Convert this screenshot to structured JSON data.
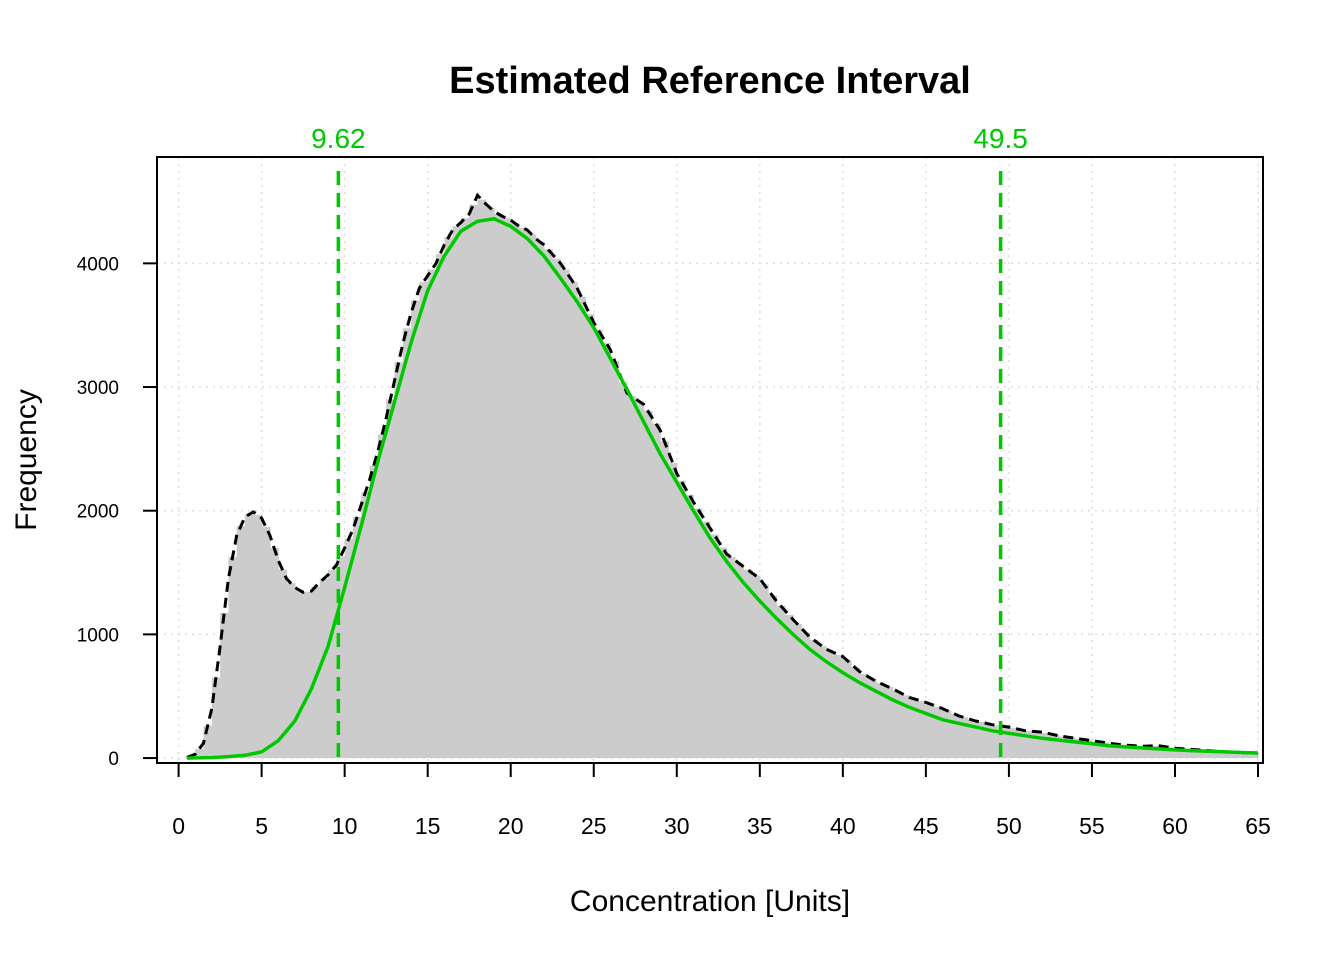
{
  "chart_data": {
    "type": "histogram",
    "title": "Estimated Reference Interval",
    "xlabel": "Concentration [Units]",
    "ylabel": "Frequency",
    "xlim": [
      -1.3,
      65.3
    ],
    "ylim": [
      -40,
      4860
    ],
    "xticks": [
      0,
      5,
      10,
      15,
      20,
      25,
      30,
      35,
      40,
      45,
      50,
      55,
      60,
      65
    ],
    "yticks": [
      0,
      1000,
      2000,
      3000,
      4000
    ],
    "grid": true,
    "bin_width": 0.5,
    "density_profile": {
      "x": [
        0.5,
        1.0,
        1.5,
        2.0,
        2.5,
        3.0,
        3.5,
        4.0,
        4.5,
        5.0,
        5.5,
        6.0,
        6.5,
        7.0,
        7.5,
        8.0,
        8.5,
        9.0,
        9.5,
        10.0,
        10.5,
        11.0,
        11.5,
        12.0,
        12.5,
        13.0,
        13.5,
        14.0,
        14.5,
        15.0,
        15.5,
        16.0,
        16.5,
        17.0,
        17.5,
        18.0,
        18.5,
        19.0,
        19.5,
        20.0,
        20.5,
        21.0,
        21.5,
        22.0,
        23.0,
        24.0,
        25.0,
        26.0,
        27.0,
        28.0,
        29.0,
        30.0,
        31.0,
        32.0,
        33.0,
        34.0,
        35.0,
        36.0,
        37.0,
        38.0,
        39.0,
        40.0,
        41.0,
        42.0,
        43.0,
        44.0,
        45.0,
        46.0,
        47.0,
        48.0,
        49.0,
        50.0,
        51.0,
        52.0,
        53.0,
        54.0,
        55.0,
        56.0,
        57.0,
        58.0,
        59.0,
        60.0,
        61.0,
        62.0,
        63.0,
        64.0,
        65.0
      ],
      "y": [
        5,
        30,
        120,
        400,
        900,
        1450,
        1800,
        1950,
        1990,
        1940,
        1800,
        1600,
        1450,
        1380,
        1340,
        1350,
        1420,
        1480,
        1560,
        1700,
        1850,
        2050,
        2250,
        2480,
        2750,
        3050,
        3350,
        3600,
        3800,
        3900,
        4000,
        4150,
        4270,
        4330,
        4400,
        4550,
        4480,
        4420,
        4380,
        4350,
        4300,
        4270,
        4200,
        4150,
        4000,
        3800,
        3520,
        3300,
        2950,
        2860,
        2650,
        2300,
        2070,
        1860,
        1650,
        1550,
        1450,
        1270,
        1120,
        980,
        880,
        820,
        700,
        620,
        560,
        490,
        450,
        400,
        340,
        300,
        270,
        250,
        220,
        210,
        180,
        160,
        140,
        120,
        105,
        95,
        100,
        80,
        70,
        60,
        50,
        45,
        40
      ]
    },
    "fitted_curve": {
      "x": [
        0.5,
        1.0,
        2.0,
        3.0,
        4.0,
        5.0,
        6.0,
        7.0,
        8.0,
        9.0,
        10.0,
        11.0,
        12.0,
        13.0,
        14.0,
        15.0,
        16.0,
        17.0,
        18.0,
        19.0,
        20.0,
        21.0,
        22.0,
        23.0,
        24.0,
        25.0,
        26.0,
        27.0,
        28.0,
        29.0,
        30.0,
        31.0,
        32.0,
        33.0,
        34.0,
        35.0,
        36.0,
        37.0,
        38.0,
        39.0,
        40.0,
        41.0,
        42.0,
        43.0,
        44.0,
        45.0,
        46.0,
        47.0,
        48.0,
        49.0,
        50.0,
        51.0,
        52.0,
        53.0,
        54.0,
        55.0,
        56.0,
        57.0,
        58.0,
        59.0,
        60.0,
        61.0,
        62.0,
        63.0,
        64.0,
        65.0
      ],
      "y": [
        0,
        1,
        4,
        12,
        22,
        50,
        140,
        300,
        560,
        900,
        1380,
        1880,
        2400,
        2880,
        3360,
        3780,
        4060,
        4260,
        4340,
        4360,
        4300,
        4200,
        4060,
        3880,
        3690,
        3480,
        3230,
        2980,
        2720,
        2460,
        2230,
        2000,
        1780,
        1590,
        1420,
        1270,
        1130,
        1000,
        880,
        780,
        690,
        610,
        540,
        470,
        410,
        360,
        310,
        280,
        250,
        220,
        200,
        180,
        160,
        145,
        130,
        115,
        100,
        90,
        82,
        74,
        66,
        60,
        55,
        50,
        45,
        41
      ]
    },
    "reference_lines": [
      {
        "x": 9.62,
        "label": "9.62"
      },
      {
        "x": 49.5,
        "label": "49.5"
      }
    ],
    "colors": {
      "bars": "#cccccc",
      "density_line": "#000000",
      "fitted_line": "#00c800",
      "reference_line": "#00c800",
      "grid": "#dddddd"
    }
  }
}
